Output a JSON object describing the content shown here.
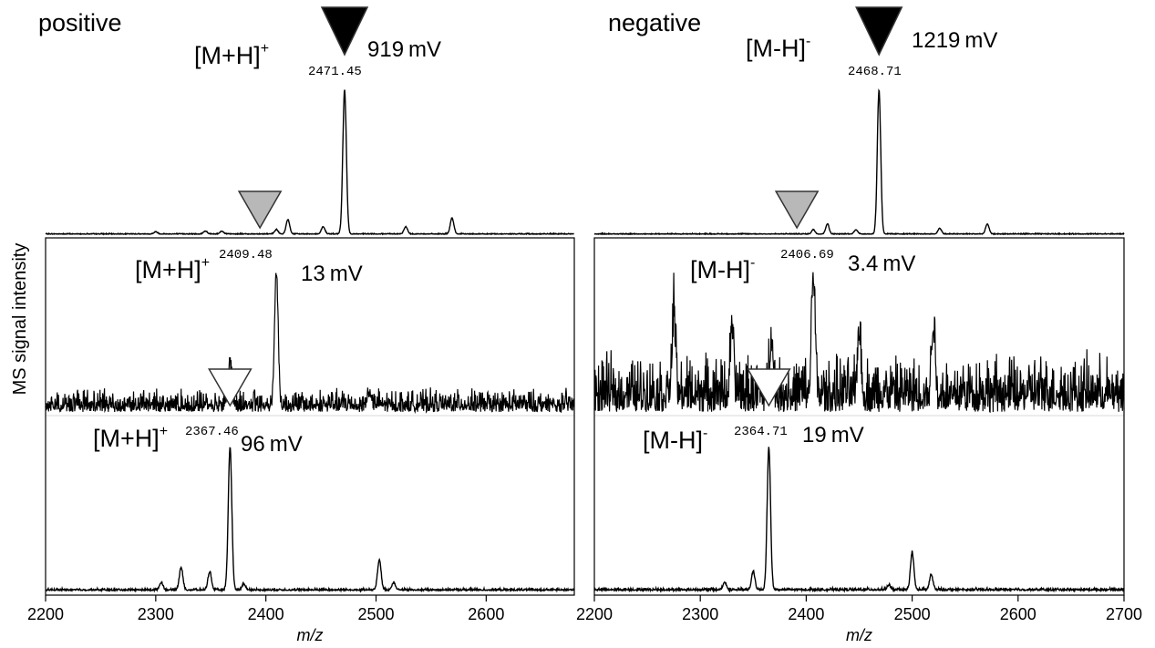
{
  "figure": {
    "ylabel": "MS signal intensity",
    "xlabel": "m/z",
    "colors": {
      "trace": "#000000",
      "marker_black": "#000000",
      "marker_gray": "#b8b8b8",
      "marker_white": "#ffffff"
    }
  },
  "chart_data": [
    {
      "type": "line",
      "title": "positive",
      "xlim": [
        2200,
        2680
      ],
      "xticks": [
        "2200",
        "2300",
        "2400",
        "2500",
        "2600"
      ],
      "xlabel": "m/z",
      "traces": [
        {
          "ion": "[M+H]",
          "charge": "+",
          "mass_label": "2471.45",
          "intensity": "919",
          "unit": "mV",
          "marker": "black",
          "noise": 0.005,
          "peaks": [
            [
              2471.45,
              1.0
            ],
            [
              2420,
              0.1
            ],
            [
              2569,
              0.11
            ],
            [
              2527,
              0.05
            ],
            [
              2452,
              0.05
            ],
            [
              2409.5,
              0.03
            ],
            [
              2300,
              0.015
            ],
            [
              2345,
              0.02
            ],
            [
              2360,
              0.02
            ]
          ]
        },
        {
          "ion": "[M+H]",
          "charge": "+",
          "mass_label": "2409.48",
          "intensity": "13",
          "unit": "mV",
          "marker": "gray",
          "noise": 0.12,
          "peaks": [
            [
              2409.48,
              0.9
            ],
            [
              2367.5,
              0.3
            ],
            [
              2494,
              0.1
            ]
          ]
        },
        {
          "ion": "[M+H]",
          "charge": "+",
          "mass_label": "2367.46",
          "intensity": "96",
          "unit": "mV",
          "marker": "white",
          "noise": 0.012,
          "peaks": [
            [
              2367.46,
              0.95
            ],
            [
              2323,
              0.15
            ],
            [
              2349,
              0.12
            ],
            [
              2503,
              0.2
            ],
            [
              2516,
              0.05
            ],
            [
              2305,
              0.05
            ],
            [
              2380,
              0.04
            ]
          ]
        }
      ]
    },
    {
      "type": "line",
      "title": "negative",
      "xlim": [
        2200,
        2700
      ],
      "xticks": [
        "2200",
        "2300",
        "2400",
        "2500",
        "2600",
        "2700"
      ],
      "xlabel": "m/z",
      "traces": [
        {
          "ion": "[M-H]",
          "charge": "-",
          "mass_label": "2468.71",
          "intensity": "1219",
          "unit": "mV",
          "marker": "black",
          "noise": 0.005,
          "peaks": [
            [
              2468.71,
              1.0
            ],
            [
              2420,
              0.07
            ],
            [
              2571,
              0.07
            ],
            [
              2526,
              0.04
            ],
            [
              2447,
              0.03
            ],
            [
              2406.7,
              0.03
            ]
          ]
        },
        {
          "ion": "[M-H]",
          "charge": "-",
          "mass_label": "2406.69",
          "intensity": "3.4",
          "unit": "mV",
          "marker": "gray",
          "noise": 0.3,
          "peaks": [
            [
              2406.69,
              0.85
            ],
            [
              2367,
              0.4
            ],
            [
              2275,
              0.55
            ],
            [
              2330,
              0.45
            ],
            [
              2450,
              0.45
            ],
            [
              2520,
              0.5
            ]
          ]
        },
        {
          "ion": "[M-H]",
          "charge": "-",
          "mass_label": "2364.71",
          "intensity": "19",
          "unit": "mV",
          "marker": "white",
          "noise": 0.015,
          "peaks": [
            [
              2364.71,
              0.95
            ],
            [
              2350,
              0.12
            ],
            [
              2323,
              0.05
            ],
            [
              2500,
              0.25
            ],
            [
              2518,
              0.1
            ],
            [
              2478,
              0.03
            ]
          ]
        }
      ]
    }
  ]
}
